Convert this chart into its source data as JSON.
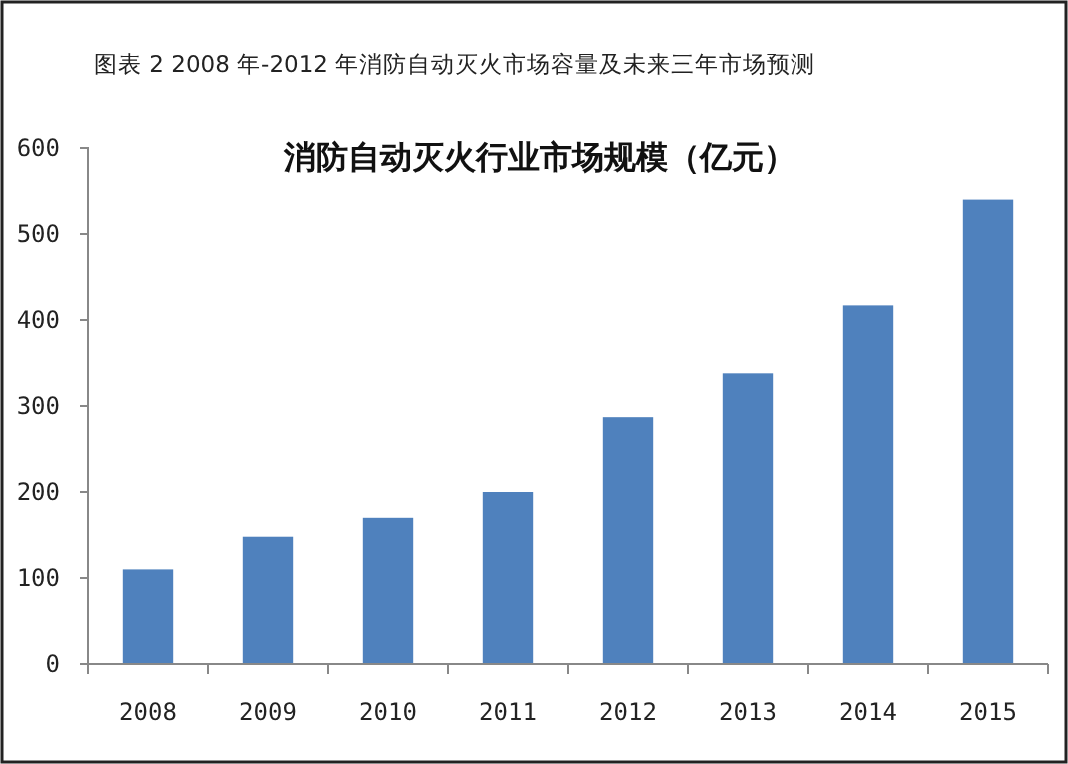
{
  "chart_data": {
    "type": "bar",
    "subtitle": "图表 2 2008 年-2012 年消防自动灭火市场容量及未来三年市场预测",
    "title": "消防自动灭火行业市场规模（亿元）",
    "categories": [
      "2008",
      "2009",
      "2010",
      "2011",
      "2012",
      "2013",
      "2014",
      "2015"
    ],
    "values": [
      110,
      148,
      170,
      200,
      287,
      338,
      417,
      540
    ],
    "color": "#4f81bd",
    "ylim": [
      0,
      600
    ],
    "yticks": [
      0,
      100,
      200,
      300,
      400,
      500,
      600
    ],
    "grid": false
  }
}
